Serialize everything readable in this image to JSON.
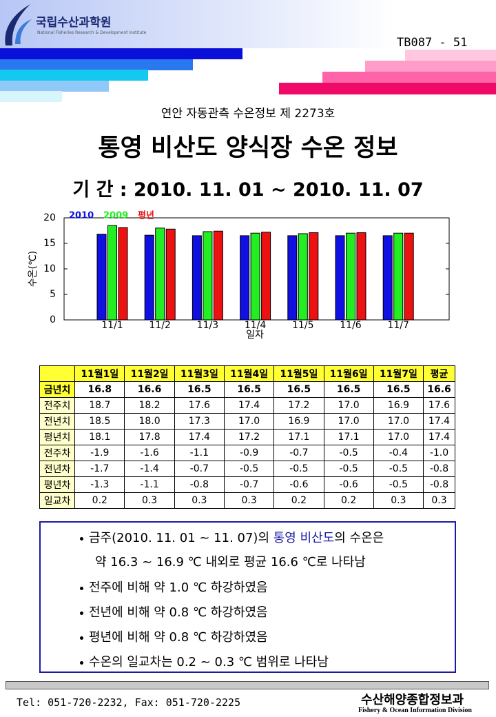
{
  "header": {
    "org": "국립수산과학원",
    "org_sub": "National Fisheries Research & Development Institute",
    "code": "TB087 - 51"
  },
  "issue": "연안 자동관측 수온정보 제 2273호",
  "title": "통영 비산도 양식장 수온 정보",
  "period": "기 간 : 2010. 11. 01 ~ 2010. 11. 07",
  "chart_data": {
    "type": "bar",
    "y_label": "수온(℃)",
    "x_label": "일자",
    "categories": [
      "11/1",
      "11/2",
      "11/3",
      "11/4",
      "11/5",
      "11/6",
      "11/7"
    ],
    "series": [
      {
        "name": "2010",
        "color": "#1010e0",
        "values": [
          16.8,
          16.6,
          16.5,
          16.5,
          16.5,
          16.5,
          16.5
        ]
      },
      {
        "name": "2009",
        "color": "#22ee22",
        "values": [
          18.5,
          18.0,
          17.3,
          17.0,
          16.9,
          17.0,
          17.0
        ]
      },
      {
        "name": "평년",
        "color": "#ee1111",
        "values": [
          18.1,
          17.8,
          17.4,
          17.2,
          17.1,
          17.1,
          17.0
        ]
      }
    ],
    "ylim": [
      0,
      20
    ],
    "yticks": [
      0,
      5,
      10,
      15,
      20
    ],
    "grid": false
  },
  "table": {
    "header": [
      "11월1일",
      "11월2일",
      "11월3일",
      "11월4일",
      "11월5일",
      "11월6일",
      "11월7일",
      "평균"
    ],
    "rows": [
      [
        "금년치",
        "16.8",
        "16.6",
        "16.5",
        "16.5",
        "16.5",
        "16.5",
        "16.5",
        "16.6"
      ],
      [
        "전주치",
        "18.7",
        "18.2",
        "17.6",
        "17.4",
        "17.2",
        "17.0",
        "16.9",
        "17.6"
      ],
      [
        "전년치",
        "18.5",
        "18.0",
        "17.3",
        "17.0",
        "16.9",
        "17.0",
        "17.0",
        "17.4"
      ],
      [
        "평년치",
        "18.1",
        "17.8",
        "17.4",
        "17.2",
        "17.1",
        "17.1",
        "17.0",
        "17.4"
      ],
      [
        "전주차",
        "-1.9",
        "-1.6",
        "-1.1",
        "-0.9",
        "-0.7",
        "-0.5",
        "-0.4",
        "-1.0"
      ],
      [
        "전년차",
        "-1.7",
        "-1.4",
        "-0.7",
        "-0.5",
        "-0.5",
        "-0.5",
        "-0.5",
        "-0.8"
      ],
      [
        "평년차",
        "-1.3",
        "-1.1",
        "-0.8",
        "-0.7",
        "-0.6",
        "-0.6",
        "-0.5",
        "-0.8"
      ],
      [
        "일교차",
        "0.2",
        "0.3",
        "0.3",
        "0.3",
        "0.2",
        "0.2",
        "0.3",
        "0.3"
      ]
    ]
  },
  "summary": {
    "first": [
      "금주(2010. 11. 01 ~ 11. 07)의 ",
      "통영 비산도",
      "의 수온은"
    ],
    "first_cont": "약 16.3 ~ 16.9 ℃ 내외로 평균 16.6 ℃로 나타남",
    "items": [
      "전주에 비해 약 1.0 ℃ 하강하였음",
      "전년에 비해 약 0.8 ℃ 하강하였음",
      "평년에 비해 약 0.8 ℃ 하강하였음",
      "수온의 일교차는 0.2 ~ 0.3 ℃ 범위로 나타남"
    ]
  },
  "footer": {
    "contact": "Tel: 051-720-2232,  Fax: 051-720-2225",
    "division": "수산해양종합정보과",
    "division_en": "Fishery & Ocean Information Division"
  }
}
